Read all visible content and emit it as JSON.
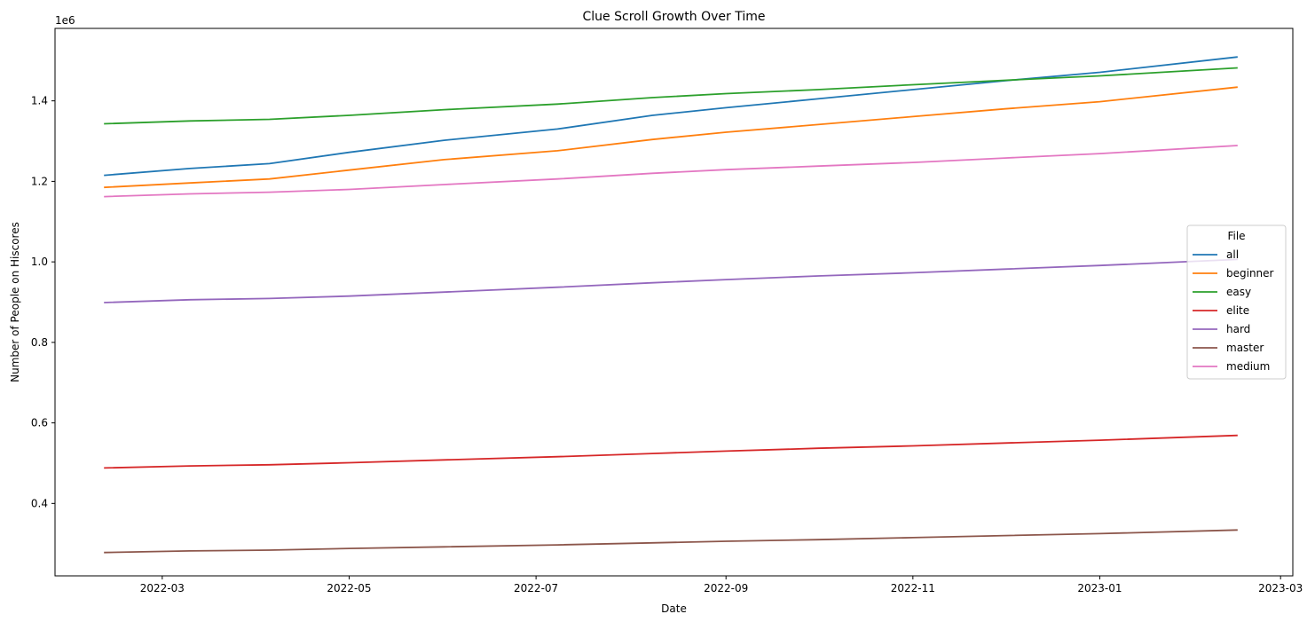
{
  "chart_data": {
    "type": "line",
    "title": "Clue Scroll Growth Over Time",
    "xlabel": "Date",
    "ylabel": "Number of People on Hiscores",
    "y_offset_label": "1e6",
    "y_multiplier": 1000000,
    "xlim": [
      "2022-01-25",
      "2023-03-05"
    ],
    "ylim": [
      220000,
      1580000
    ],
    "x_ticks": [
      "2022-03-01",
      "2022-05-01",
      "2022-07-01",
      "2022-09-01",
      "2022-11-01",
      "2023-01-01",
      "2023-03-01"
    ],
    "x_tick_labels": [
      "2022-03",
      "2022-05",
      "2022-07",
      "2022-09",
      "2022-11",
      "2023-01",
      "2023-03"
    ],
    "y_ticks": [
      400000,
      600000,
      800000,
      1000000,
      1200000,
      1400000
    ],
    "y_tick_labels": [
      "0.4",
      "0.6",
      "0.8",
      "1.0",
      "1.2",
      "1.4"
    ],
    "grid": false,
    "legend": {
      "title": "File",
      "placement": "center-right"
    },
    "x": [
      "2022-02-10",
      "2022-03-10",
      "2022-04-05",
      "2022-05-01",
      "2022-06-01",
      "2022-07-08",
      "2022-08-08",
      "2022-09-01",
      "2022-10-01",
      "2022-11-01",
      "2022-12-01",
      "2023-01-01",
      "2023-02-15"
    ],
    "series": [
      {
        "name": "all",
        "color": "#1f77b4",
        "values": [
          1215000,
          1232000,
          1244000,
          1272000,
          1302000,
          1330000,
          1364000,
          1383000,
          1405000,
          1428000,
          1450000,
          1471000,
          1509000
        ]
      },
      {
        "name": "beginner",
        "color": "#ff7f0e",
        "values": [
          1185000,
          1196000,
          1206000,
          1228000,
          1254000,
          1276000,
          1304000,
          1322000,
          1341000,
          1361000,
          1380000,
          1398000,
          1434000
        ]
      },
      {
        "name": "easy",
        "color": "#2ca02c",
        "values": [
          1343000,
          1350000,
          1354000,
          1364000,
          1378000,
          1392000,
          1408000,
          1418000,
          1428000,
          1440000,
          1451000,
          1462000,
          1482000
        ]
      },
      {
        "name": "elite",
        "color": "#d62728",
        "values": [
          488000,
          493000,
          496000,
          501000,
          508000,
          516000,
          524000,
          530000,
          537000,
          543000,
          550000,
          557000,
          569000
        ]
      },
      {
        "name": "hard",
        "color": "#9467bd",
        "values": [
          899000,
          906000,
          909000,
          915000,
          925000,
          937000,
          948000,
          956000,
          965000,
          973000,
          982000,
          991000,
          1006000
        ]
      },
      {
        "name": "master",
        "color": "#8c564b",
        "values": [
          278000,
          282000,
          284000,
          288000,
          292000,
          297000,
          302000,
          306000,
          310000,
          315000,
          320000,
          325000,
          334000
        ]
      },
      {
        "name": "medium",
        "color": "#e377c2",
        "values": [
          1162000,
          1169000,
          1173000,
          1180000,
          1192000,
          1206000,
          1220000,
          1229000,
          1238000,
          1247000,
          1258000,
          1269000,
          1289000
        ]
      }
    ]
  }
}
